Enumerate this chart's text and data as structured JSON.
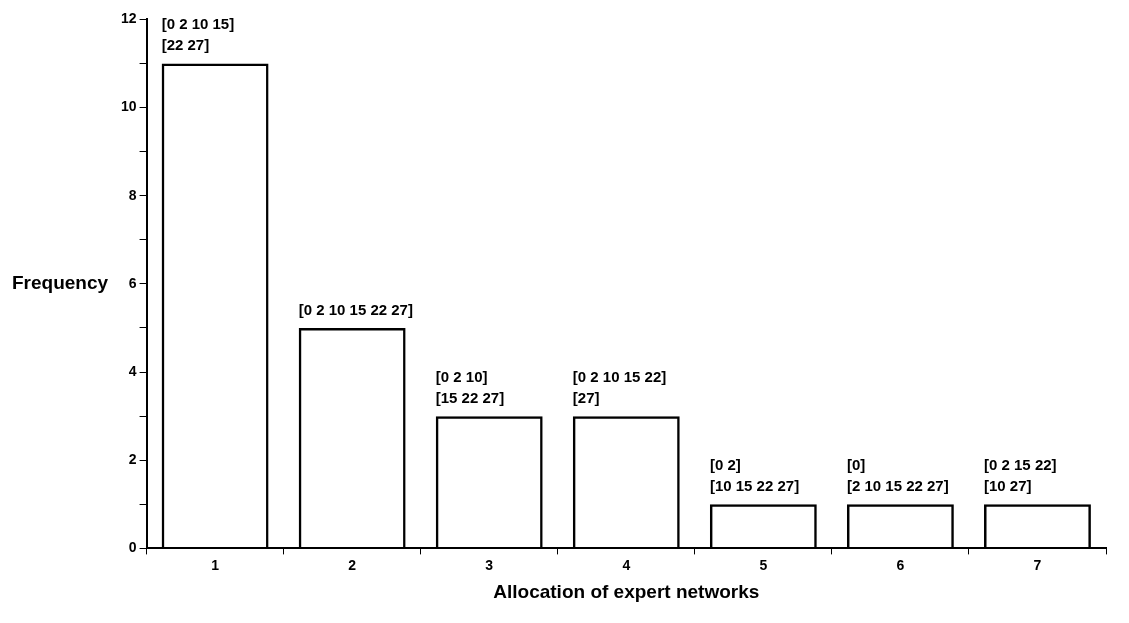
{
  "chart_data": {
    "type": "bar",
    "xlabel": "Allocation of expert networks",
    "ylabel": "Frequency",
    "categories": [
      "1",
      "2",
      "3",
      "4",
      "5",
      "6",
      "7"
    ],
    "values": [
      11,
      5,
      3,
      3,
      1,
      1,
      1
    ],
    "color": "#000000",
    "ylim": [
      0,
      12
    ],
    "yticks": [
      0,
      {
        "value": 1,
        "label": null
      },
      2,
      {
        "value": 3,
        "label": null
      },
      4,
      {
        "value": 5,
        "label": null
      },
      6,
      {
        "value": 7,
        "label": null
      },
      8,
      {
        "value": 9,
        "label": null
      },
      10,
      {
        "value": 11,
        "label": null
      },
      12
    ],
    "grid": false,
    "legend": false,
    "annotations": [
      {
        "text": "[0 2 10 15]\n[22 27]",
        "x": "1",
        "y": 11
      },
      {
        "text": "[0 2 10 15 22 27]",
        "x": "2",
        "y": 5
      },
      {
        "text": "[0 2 10]\n[15 22 27]",
        "x": "3",
        "y": 3
      },
      {
        "text": "[0 2 10 15 22]\n[27]",
        "x": "4",
        "y": 3
      },
      {
        "text": "[0 2]\n[10 15 22 27]",
        "x": "5",
        "y": 1
      },
      {
        "text": "[0]\n[2 10 15 22 27]",
        "x": "6",
        "y": 1
      },
      {
        "text": "[0 2 15 22]\n[10 27]",
        "x": "7",
        "y": 1
      }
    ]
  }
}
